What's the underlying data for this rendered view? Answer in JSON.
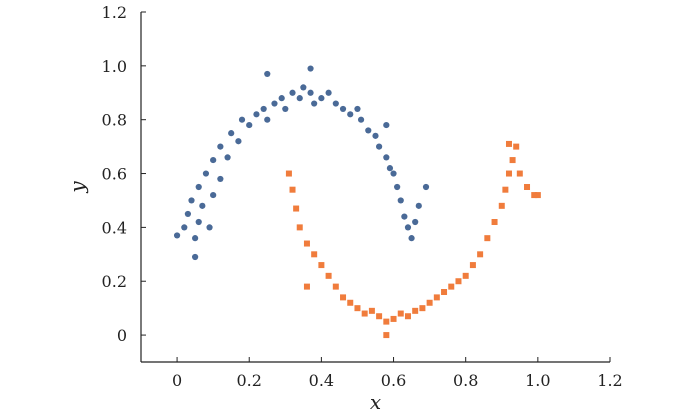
{
  "chart_data": {
    "type": "scatter",
    "title": "",
    "xlabel": "x",
    "ylabel": "y",
    "xlim": [
      -0.1,
      1.2
    ],
    "ylim": [
      -0.1,
      1.2
    ],
    "xticks": [
      0,
      0.2,
      0.4,
      0.6,
      0.8,
      1.0,
      1.2
    ],
    "xtick_labels": [
      "0",
      "0.2",
      "0.4",
      "0.6",
      "0.8",
      "1.0",
      "1.2"
    ],
    "yticks": [
      0,
      0.2,
      0.4,
      0.6,
      0.8,
      1.0,
      1.2
    ],
    "ytick_labels": [
      "0",
      "0.2",
      "0.4",
      "0.6",
      "0.8",
      "1.0",
      "1.2"
    ],
    "grid": false,
    "legend": "none",
    "series": [
      {
        "marker": "circle",
        "color": "#4a6a97",
        "points": [
          [
            0.0,
            0.37
          ],
          [
            0.02,
            0.4
          ],
          [
            0.03,
            0.45
          ],
          [
            0.04,
            0.5
          ],
          [
            0.05,
            0.36
          ],
          [
            0.06,
            0.42
          ],
          [
            0.06,
            0.55
          ],
          [
            0.07,
            0.48
          ],
          [
            0.08,
            0.6
          ],
          [
            0.09,
            0.4
          ],
          [
            0.1,
            0.52
          ],
          [
            0.1,
            0.65
          ],
          [
            0.12,
            0.58
          ],
          [
            0.12,
            0.7
          ],
          [
            0.14,
            0.66
          ],
          [
            0.15,
            0.75
          ],
          [
            0.17,
            0.72
          ],
          [
            0.18,
            0.8
          ],
          [
            0.2,
            0.78
          ],
          [
            0.22,
            0.82
          ],
          [
            0.24,
            0.84
          ],
          [
            0.25,
            0.8
          ],
          [
            0.27,
            0.86
          ],
          [
            0.29,
            0.88
          ],
          [
            0.3,
            0.84
          ],
          [
            0.32,
            0.9
          ],
          [
            0.34,
            0.88
          ],
          [
            0.35,
            0.92
          ],
          [
            0.37,
            0.9
          ],
          [
            0.38,
            0.86
          ],
          [
            0.4,
            0.88
          ],
          [
            0.42,
            0.9
          ],
          [
            0.44,
            0.86
          ],
          [
            0.46,
            0.84
          ],
          [
            0.48,
            0.82
          ],
          [
            0.5,
            0.84
          ],
          [
            0.51,
            0.8
          ],
          [
            0.53,
            0.76
          ],
          [
            0.55,
            0.74
          ],
          [
            0.56,
            0.7
          ],
          [
            0.58,
            0.66
          ],
          [
            0.59,
            0.62
          ],
          [
            0.6,
            0.6
          ],
          [
            0.61,
            0.55
          ],
          [
            0.62,
            0.5
          ],
          [
            0.63,
            0.44
          ],
          [
            0.64,
            0.4
          ],
          [
            0.65,
            0.36
          ],
          [
            0.66,
            0.42
          ],
          [
            0.67,
            0.48
          ],
          [
            0.05,
            0.29
          ],
          [
            0.37,
            0.99
          ],
          [
            0.25,
            0.97
          ],
          [
            0.58,
            0.78
          ],
          [
            0.69,
            0.55
          ]
        ]
      },
      {
        "marker": "square",
        "color": "#f07c3c",
        "points": [
          [
            0.31,
            0.6
          ],
          [
            0.32,
            0.54
          ],
          [
            0.33,
            0.47
          ],
          [
            0.34,
            0.4
          ],
          [
            0.36,
            0.34
          ],
          [
            0.38,
            0.3
          ],
          [
            0.4,
            0.26
          ],
          [
            0.42,
            0.22
          ],
          [
            0.44,
            0.18
          ],
          [
            0.46,
            0.14
          ],
          [
            0.48,
            0.12
          ],
          [
            0.5,
            0.1
          ],
          [
            0.52,
            0.08
          ],
          [
            0.54,
            0.09
          ],
          [
            0.56,
            0.07
          ],
          [
            0.58,
            0.05
          ],
          [
            0.6,
            0.06
          ],
          [
            0.62,
            0.08
          ],
          [
            0.64,
            0.07
          ],
          [
            0.66,
            0.09
          ],
          [
            0.68,
            0.1
          ],
          [
            0.7,
            0.12
          ],
          [
            0.72,
            0.14
          ],
          [
            0.74,
            0.16
          ],
          [
            0.76,
            0.18
          ],
          [
            0.78,
            0.2
          ],
          [
            0.8,
            0.22
          ],
          [
            0.82,
            0.26
          ],
          [
            0.84,
            0.3
          ],
          [
            0.86,
            0.36
          ],
          [
            0.88,
            0.42
          ],
          [
            0.9,
            0.48
          ],
          [
            0.91,
            0.54
          ],
          [
            0.92,
            0.6
          ],
          [
            0.93,
            0.65
          ],
          [
            0.94,
            0.7
          ],
          [
            0.95,
            0.6
          ],
          [
            0.97,
            0.55
          ],
          [
            0.99,
            0.52
          ],
          [
            1.0,
            0.52
          ],
          [
            0.58,
            0.0
          ],
          [
            0.92,
            0.71
          ],
          [
            0.36,
            0.18
          ]
        ]
      }
    ]
  }
}
